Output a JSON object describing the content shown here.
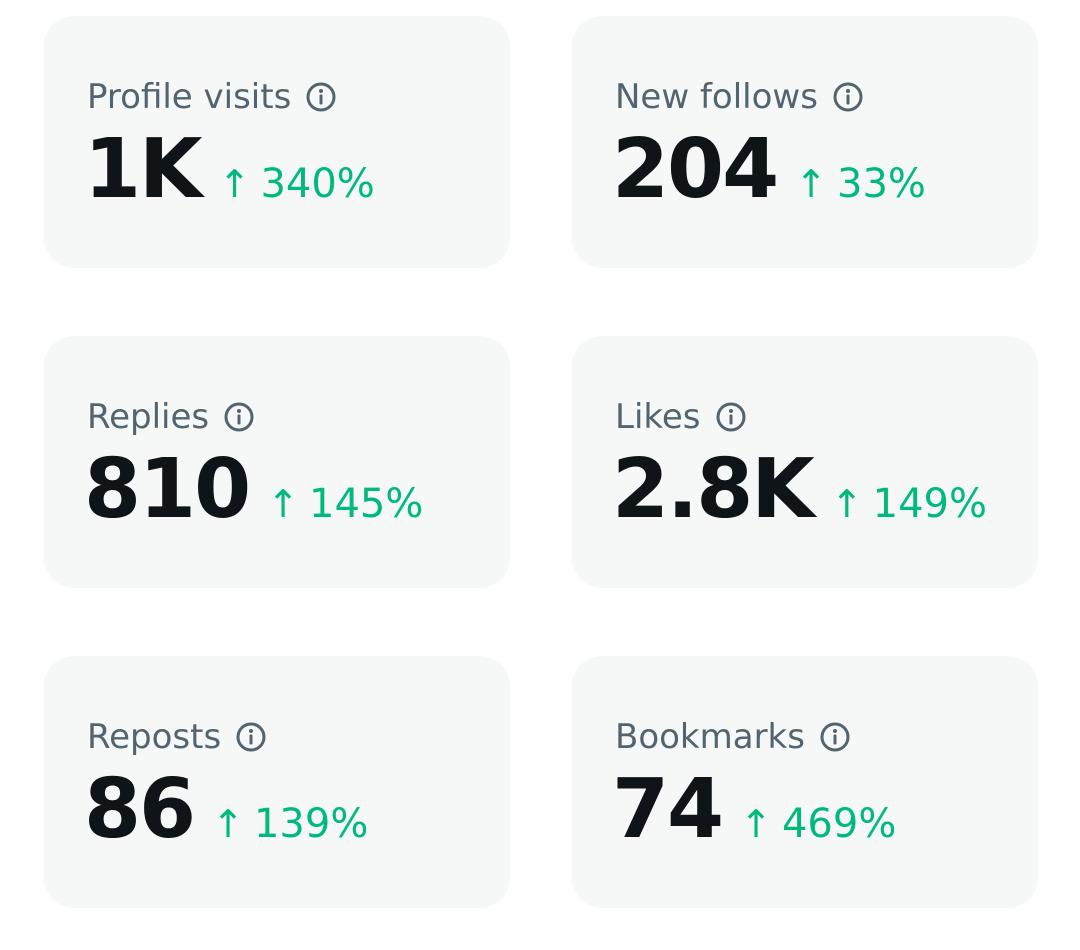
{
  "accent_color": "#00ba7c",
  "cards": [
    {
      "label": "Profile visits",
      "value": "1K",
      "change": "340%",
      "icon": "info-icon",
      "trend_icon": "arrow-up-icon"
    },
    {
      "label": "New follows",
      "value": "204",
      "change": "33%",
      "icon": "info-icon",
      "trend_icon": "arrow-up-icon"
    },
    {
      "label": "Replies",
      "value": "810",
      "change": "145%",
      "icon": "info-icon",
      "trend_icon": "arrow-up-icon"
    },
    {
      "label": "Likes",
      "value": "2.8K",
      "change": "149%",
      "icon": "info-icon",
      "trend_icon": "arrow-up-icon"
    },
    {
      "label": "Reposts",
      "value": "86",
      "change": "139%",
      "icon": "info-icon",
      "trend_icon": "arrow-up-icon"
    },
    {
      "label": "Bookmarks",
      "value": "74",
      "change": "469%",
      "icon": "info-icon",
      "trend_icon": "arrow-up-icon"
    }
  ]
}
